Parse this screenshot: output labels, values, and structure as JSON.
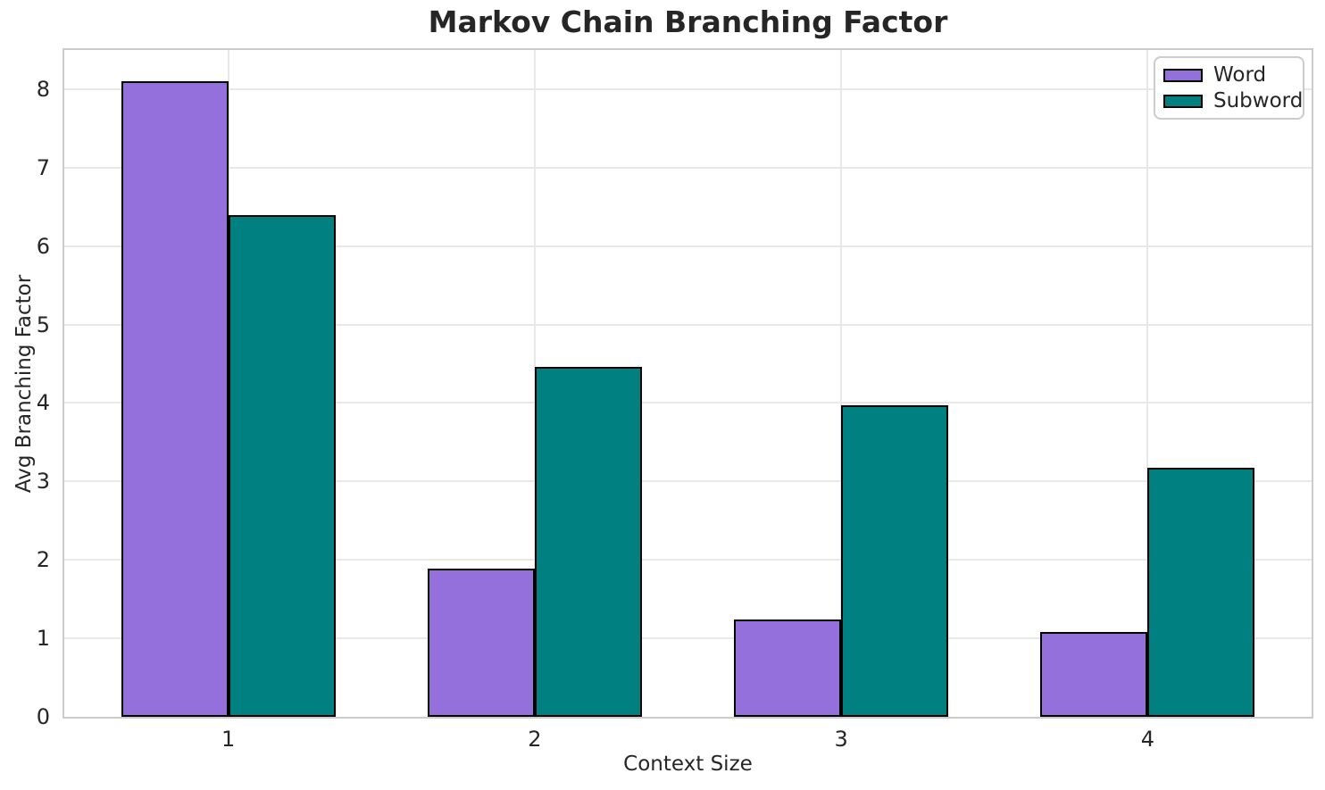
{
  "chart_data": {
    "type": "bar",
    "title": "Markov Chain Branching Factor",
    "xlabel": "Context Size",
    "ylabel": "Avg Branching Factor",
    "categories": [
      "1",
      "2",
      "3",
      "4"
    ],
    "x_values": [
      1,
      2,
      3,
      4
    ],
    "series": [
      {
        "name": "Word",
        "color": "#9370DB",
        "values": [
          8.1,
          1.89,
          1.24,
          1.08
        ]
      },
      {
        "name": "Subword",
        "color": "#008080",
        "values": [
          6.4,
          4.46,
          3.97,
          3.18
        ]
      }
    ],
    "yticks": [
      0,
      1,
      2,
      3,
      4,
      5,
      6,
      7,
      8
    ],
    "ylim": [
      0,
      8.5
    ],
    "xlim": [
      0.465,
      4.535
    ],
    "bar_width": 0.35,
    "bar_edge_color": "#000000",
    "grid": true,
    "grid_color": "#e8e8e8",
    "spine_color": "#cccccc",
    "text_color": "#262626",
    "background": "#ffffff",
    "legend_position": "upper right"
  }
}
